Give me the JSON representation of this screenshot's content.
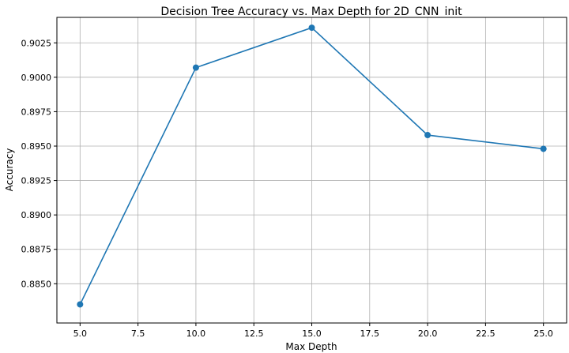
{
  "chart_data": {
    "type": "line",
    "title": "Decision Tree Accuracy vs. Max Depth for 2D_CNN_init",
    "xlabel": "Max Depth",
    "ylabel": "Accuracy",
    "x": [
      5,
      10,
      15,
      20,
      25
    ],
    "series": [
      {
        "values": [
          0.8835,
          0.9007,
          0.9036,
          0.8958,
          0.8948
        ],
        "color": "#1f77b4"
      }
    ],
    "xlim": [
      4.0,
      26.0
    ],
    "ylim": [
      0.88215,
      0.90435
    ],
    "xticks": [
      "5.0",
      "7.5",
      "10.0",
      "12.5",
      "15.0",
      "17.5",
      "20.0",
      "22.5",
      "25.0"
    ],
    "yticks": [
      "0.8850",
      "0.8875",
      "0.8900",
      "0.8925",
      "0.8950",
      "0.8975",
      "0.9000",
      "0.9025"
    ],
    "grid": true,
    "marker": "circle"
  }
}
